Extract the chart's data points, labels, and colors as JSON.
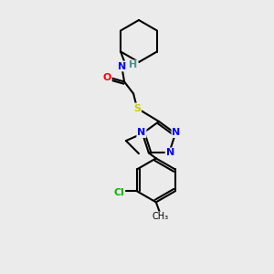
{
  "background_color": "#ebebeb",
  "bond_color": "#000000",
  "atom_colors": {
    "N": "#0000ff",
    "O": "#ff0000",
    "S": "#cccc00",
    "Cl": "#00bb00",
    "H": "#4a9090",
    "C": "#000000"
  },
  "figsize": [
    3.0,
    3.0
  ],
  "dpi": 100
}
